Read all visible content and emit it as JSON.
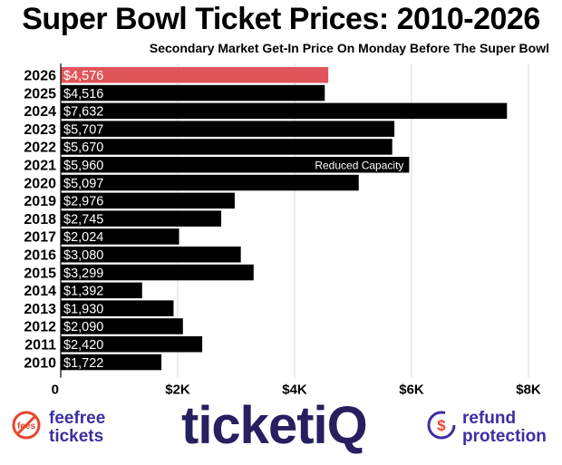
{
  "chart_data": {
    "type": "bar",
    "orientation": "horizontal",
    "title": "Super Bowl Ticket Prices: 2010-2026",
    "subtitle": "Secondary Market Get-In Price On Monday Before The Super Bowl",
    "categories": [
      "2026",
      "2025",
      "2024",
      "2023",
      "2022",
      "2021",
      "2020",
      "2019",
      "2018",
      "2017",
      "2016",
      "2015",
      "2014",
      "2013",
      "2012",
      "2011",
      "2010"
    ],
    "values": [
      4576,
      4516,
      7632,
      5707,
      5670,
      5960,
      5097,
      2976,
      2745,
      2024,
      3080,
      3299,
      1392,
      1930,
      2090,
      2420,
      1722
    ],
    "value_labels": [
      "$4,576",
      "$4,516",
      "$7,632",
      "$5,707",
      "$5,670",
      "$5,960",
      "$5,097",
      "$2,976",
      "$2,745",
      "$2,024",
      "$3,080",
      "$3,299",
      "$1,392",
      "$1,930",
      "$2,090",
      "$2,420",
      "$1,722"
    ],
    "highlight_index": 0,
    "highlight_color": "#e0555a",
    "bar_color": "#000000",
    "annotations": [
      {
        "category": "2021",
        "text": "Reduced Capacity"
      }
    ],
    "xlim": [
      0,
      8000
    ],
    "xticks": [
      0,
      2000,
      4000,
      6000,
      8000
    ],
    "xtick_labels": [
      "0",
      "$2K",
      "$4K",
      "$6K",
      "$8K"
    ],
    "grid": true
  },
  "footer": {
    "fee_line1": "feefree",
    "fee_line2": "tickets",
    "fee_badge": "fees",
    "brand": "ticketiQ",
    "refund_line1": "refund",
    "refund_line2": "protection",
    "refund_symbol": "$",
    "brand_color": "#262061",
    "accent_color": "#3a2fa0",
    "alert_color": "#e8452f"
  }
}
